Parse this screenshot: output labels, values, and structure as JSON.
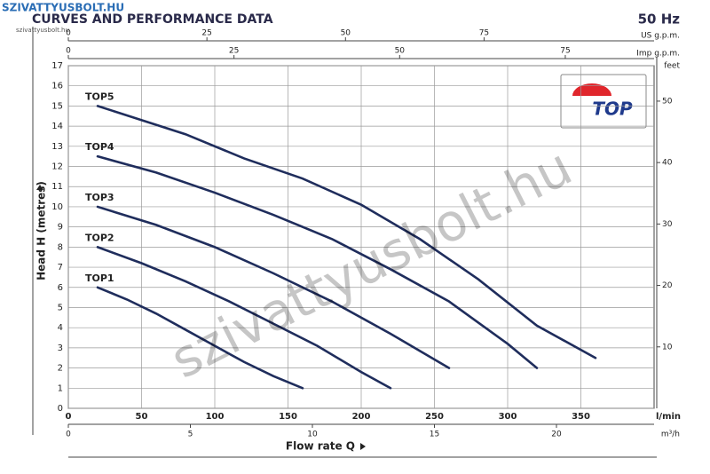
{
  "header": {
    "site": "SZIVATTYUSBOLT.HU",
    "site_small": "szivattyusbolt.hu"
  },
  "watermark": "szivattyusbolt.hu",
  "logo": "TOP",
  "chart_data": {
    "type": "line",
    "title": "CURVES AND PERFORMANCE DATA",
    "frequency": "50 Hz",
    "x_label": "Flow rate Q",
    "y_label": "Head H (metres)",
    "x_unit": "l/min",
    "xlim": [
      0,
      400
    ],
    "xticks": [
      0,
      50,
      100,
      150,
      200,
      250,
      300,
      350
    ],
    "ylim": [
      0,
      17
    ],
    "yticks": [
      0,
      1,
      2,
      3,
      4,
      5,
      6,
      7,
      8,
      9,
      10,
      11,
      12,
      13,
      14,
      15,
      16,
      17
    ],
    "grid": true,
    "color": "#1f2d5c",
    "top_axes": [
      {
        "label": "US g.p.m.",
        "lim": [
          0,
          105.67
        ],
        "ticks": [
          0,
          25,
          50,
          75
        ]
      },
      {
        "label": "Imp g.p.m.",
        "lim": [
          0,
          88.4
        ],
        "ticks": [
          0,
          25,
          50,
          75
        ]
      }
    ],
    "bottom_axis": {
      "label": "m³/h",
      "lim": [
        0,
        24
      ],
      "ticks": [
        0,
        5,
        10,
        15,
        20
      ]
    },
    "right_axis": {
      "label": "feet",
      "lim": [
        0,
        55.77
      ],
      "ticks": [
        10,
        20,
        30,
        40,
        50
      ]
    },
    "series": [
      {
        "name": "TOP1",
        "x": [
          20,
          40,
          60,
          80,
          100,
          120,
          140,
          160
        ],
        "values": [
          6,
          5.4,
          4.7,
          3.9,
          3.1,
          2.3,
          1.6,
          1.0
        ]
      },
      {
        "name": "TOP2",
        "x": [
          20,
          50,
          80,
          110,
          140,
          170,
          200,
          220
        ],
        "values": [
          8,
          7.2,
          6.3,
          5.3,
          4.2,
          3.1,
          1.8,
          1.0
        ]
      },
      {
        "name": "TOP3",
        "x": [
          20,
          60,
          100,
          140,
          180,
          220,
          260
        ],
        "values": [
          10,
          9.1,
          8,
          6.7,
          5.3,
          3.7,
          2
        ]
      },
      {
        "name": "TOP4",
        "x": [
          20,
          60,
          100,
          140,
          180,
          220,
          260,
          300,
          320
        ],
        "values": [
          12.5,
          11.7,
          10.7,
          9.6,
          8.4,
          6.9,
          5.3,
          3.2,
          2
        ]
      },
      {
        "name": "TOP5",
        "x": [
          20,
          80,
          120,
          160,
          200,
          240,
          280,
          320,
          360
        ],
        "values": [
          15,
          13.6,
          12.4,
          11.4,
          10.1,
          8.4,
          6.4,
          4.1,
          2.5
        ]
      }
    ]
  }
}
